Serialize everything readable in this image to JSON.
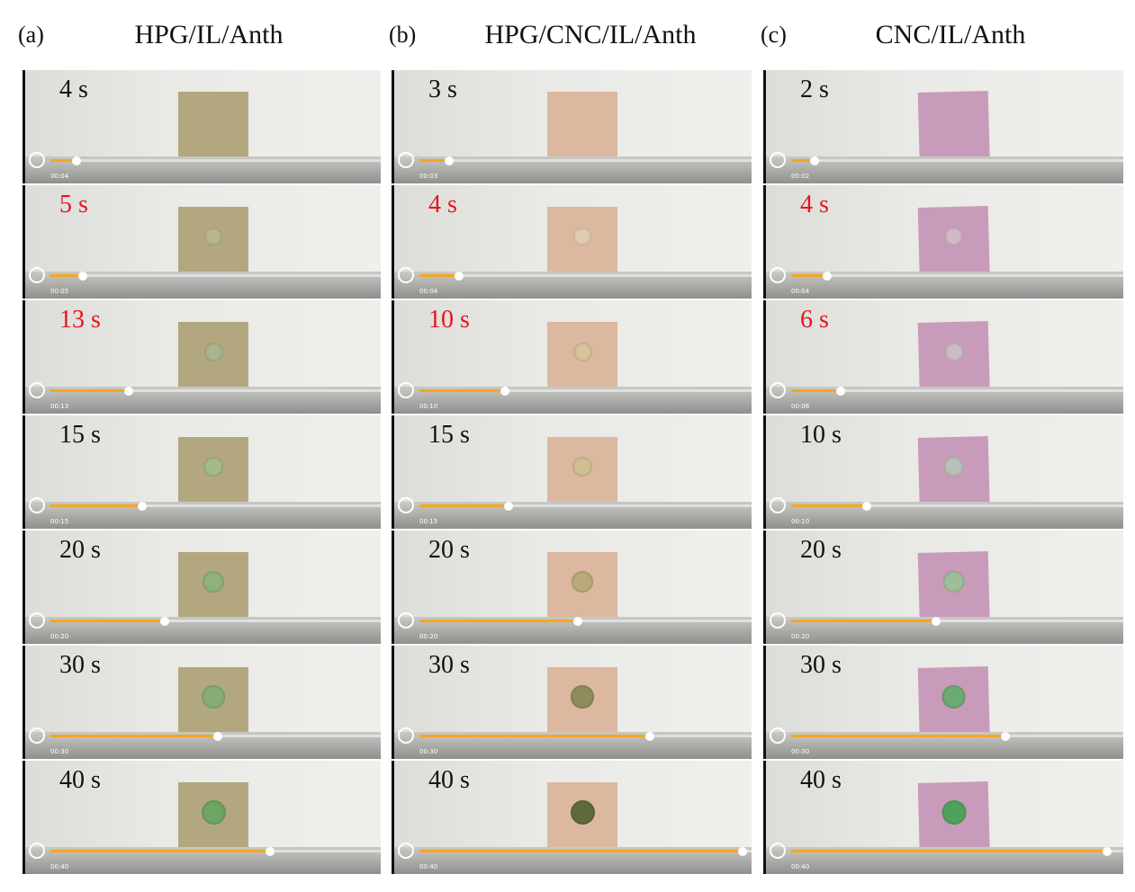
{
  "panels": [
    {
      "label": "(a)",
      "title": "HPG/IL/Anth",
      "frames": [
        {
          "time": "4 s",
          "timestamp": "00:04",
          "color": "#111111"
        },
        {
          "time": "5 s",
          "timestamp": "00:05",
          "color": "#e8141c"
        },
        {
          "time": "13 s",
          "timestamp": "00:13",
          "color": "#e8141c"
        },
        {
          "time": "15 s",
          "timestamp": "00:15",
          "color": "#111111"
        },
        {
          "time": "20 s",
          "timestamp": "00:20",
          "color": "#111111"
        },
        {
          "time": "30 s",
          "timestamp": "00:30",
          "color": "#111111"
        },
        {
          "time": "40 s",
          "timestamp": "00:40",
          "color": "#111111"
        }
      ]
    },
    {
      "label": "(b)",
      "title": "HPG/CNC/IL/Anth",
      "frames": [
        {
          "time": "3 s",
          "timestamp": "00:03",
          "color": "#111111"
        },
        {
          "time": "4 s",
          "timestamp": "00:04",
          "color": "#e8141c"
        },
        {
          "time": "10 s",
          "timestamp": "00:10",
          "color": "#e8141c"
        },
        {
          "time": "15 s",
          "timestamp": "00:15",
          "color": "#111111"
        },
        {
          "time": "20 s",
          "timestamp": "00:20",
          "color": "#111111"
        },
        {
          "time": "30 s",
          "timestamp": "00:30",
          "color": "#111111"
        },
        {
          "time": "40 s",
          "timestamp": "00:40",
          "color": "#111111"
        }
      ]
    },
    {
      "label": "(c)",
      "title": "CNC/IL/Anth",
      "frames": [
        {
          "time": "2 s",
          "timestamp": "00:02",
          "color": "#111111"
        },
        {
          "time": "4 s",
          "timestamp": "00:04",
          "color": "#e8141c"
        },
        {
          "time": "6 s",
          "timestamp": "00:06",
          "color": "#e8141c"
        },
        {
          "time": "10 s",
          "timestamp": "00:10",
          "color": "#111111"
        },
        {
          "time": "20 s",
          "timestamp": "00:20",
          "color": "#111111"
        },
        {
          "time": "30 s",
          "timestamp": "00:30",
          "color": "#111111"
        },
        {
          "time": "40 s",
          "timestamp": "00:40",
          "color": "#111111"
        }
      ]
    }
  ]
}
